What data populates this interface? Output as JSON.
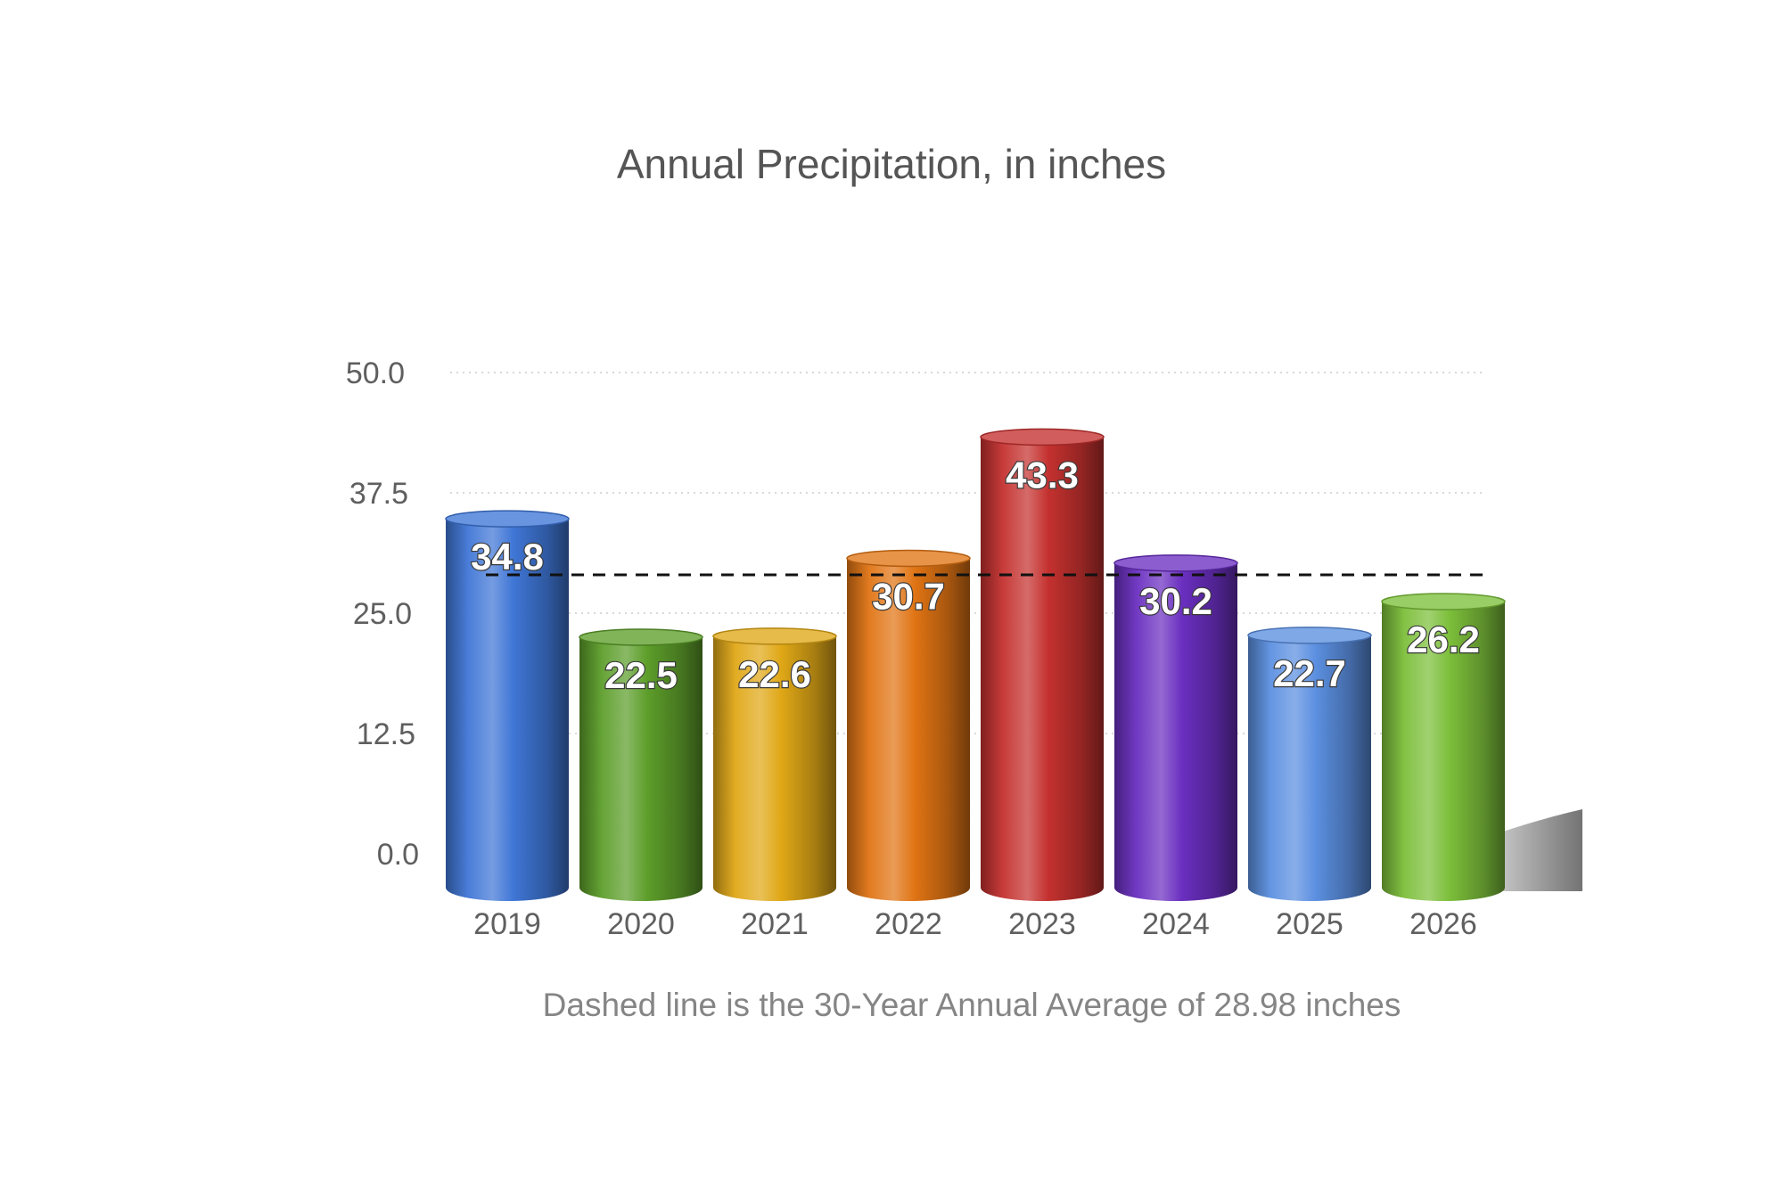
{
  "chart_data": {
    "type": "bar",
    "title": "Annual Precipitation, in inches",
    "caption": "Dashed line is the 30-Year Annual Average of 28.98 inches",
    "categories": [
      "2019",
      "2020",
      "2021",
      "2022",
      "2023",
      "2024",
      "2025",
      "2026"
    ],
    "values": [
      34.8,
      22.5,
      22.6,
      30.7,
      43.3,
      30.2,
      22.7,
      26.2
    ],
    "value_labels": [
      "34.8",
      "22.5",
      "22.6",
      "30.7",
      "43.3",
      "30.2",
      "22.7",
      "26.2"
    ],
    "colors": [
      "#3f76d6",
      "#5d9e2a",
      "#e0a817",
      "#e07414",
      "#c4312f",
      "#6a2fc0",
      "#5b8fe0",
      "#7cbf3a"
    ],
    "y_ticks": [
      "0.0",
      "12.5",
      "25.0",
      "37.5",
      "50.0"
    ],
    "y_tick_values": [
      0,
      12.5,
      25,
      37.5,
      50
    ],
    "ylim": [
      0,
      50
    ],
    "reference_line": {
      "value": 28.98,
      "style": "dashed",
      "color": "#111111"
    },
    "grid": true,
    "style": "3d-cylinder"
  }
}
